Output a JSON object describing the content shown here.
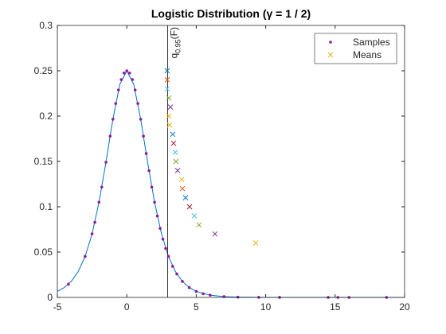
{
  "chart_data": {
    "type": "line",
    "title": "Logistic Distribution (γ = 1 / 2)",
    "xlim": [
      -5,
      20
    ],
    "ylim": [
      0,
      0.3
    ],
    "xticks": [
      -5,
      0,
      5,
      10,
      15,
      20
    ],
    "yticks": [
      0,
      0.05,
      0.1,
      0.15,
      0.2,
      0.25,
      0.3
    ],
    "grid": false,
    "legend": "northeast",
    "curve": {
      "color": "#0072BD",
      "x": [
        -5,
        -4.5,
        -4,
        -3.5,
        -3,
        -2.5,
        -2,
        -1.5,
        -1,
        -0.5,
        0,
        0.5,
        1,
        1.5,
        2,
        2.5,
        3,
        3.5,
        4,
        4.5,
        5,
        6,
        7,
        8,
        10,
        12,
        15,
        20
      ],
      "y": [
        0.00665,
        0.0109,
        0.0177,
        0.0285,
        0.0452,
        0.0701,
        0.105,
        0.1491,
        0.1966,
        0.235,
        0.25,
        0.235,
        0.1966,
        0.1491,
        0.105,
        0.0701,
        0.0452,
        0.0285,
        0.0177,
        0.0109,
        0.00665,
        0.00247,
        0.00091,
        0.000335,
        4.5e-05,
        6e-06,
        0,
        0
      ]
    },
    "vline": {
      "x": 2.944,
      "label": "q",
      "label_sub": "0.95",
      "label_suffix": "(F)",
      "color": "#000000"
    },
    "series": [
      {
        "name": "Samples",
        "marker": "dot",
        "color": "#8E1B9B",
        "x": [
          -4.2,
          -3,
          -2.5,
          -2.3,
          -2,
          -1.8,
          -1.5,
          -1.2,
          -1,
          -0.8,
          -0.6,
          -0.4,
          -0.2,
          0,
          0.2,
          0.4,
          0.6,
          0.8,
          1,
          1.2,
          1.4,
          1.6,
          1.8,
          2,
          2.2,
          2.4,
          2.6,
          2.8,
          3,
          3.3,
          3.6,
          4,
          4.5,
          5,
          5.5,
          6,
          7,
          8,
          9.5,
          11,
          14.5,
          15.2,
          16,
          18.7
        ],
        "values": [
          0.0146,
          0.0452,
          0.0701,
          0.0828,
          0.105,
          0.1217,
          0.1491,
          0.1779,
          0.1966,
          0.2139,
          0.2288,
          0.2403,
          0.2475,
          0.25,
          0.2475,
          0.2403,
          0.2288,
          0.2139,
          0.1966,
          0.1779,
          0.1587,
          0.1398,
          0.1217,
          0.105,
          0.0898,
          0.0762,
          0.0643,
          0.054,
          0.0452,
          0.0343,
          0.0259,
          0.0177,
          0.0109,
          0.00665,
          0.00405,
          0.00247,
          0.00091,
          0.000335,
          7.5e-05,
          1.67e-05,
          0,
          0,
          0,
          0
        ]
      },
      {
        "name": "Means",
        "marker": "x",
        "color": "#EDB120",
        "x": [
          2.91,
          2.91,
          2.91,
          3.03,
          3.14,
          3.03,
          3.08,
          3.31,
          3.37,
          3.49,
          3.54,
          3.66,
          3.95,
          4.0,
          4.23,
          4.52,
          4.86,
          5.2,
          6.35,
          9.28
        ],
        "values": [
          0.25,
          0.24,
          0.23,
          0.22,
          0.21,
          0.2,
          0.19,
          0.18,
          0.17,
          0.16,
          0.15,
          0.14,
          0.13,
          0.12,
          0.11,
          0.1,
          0.09,
          0.08,
          0.07,
          0.06
        ],
        "colors": [
          "#0072BD",
          "#D95319",
          "#4DBEEE",
          "#77AC30",
          "#7E2F8E",
          "#EDB120",
          "#EDB120",
          "#0072BD",
          "#A2142F",
          "#4DBEEE",
          "#77AC30",
          "#7E2F8E",
          "#EDB120",
          "#D95319",
          "#0072BD",
          "#A2142F",
          "#4DBEEE",
          "#77AC30",
          "#7E2F8E",
          "#EDB120"
        ]
      }
    ]
  }
}
